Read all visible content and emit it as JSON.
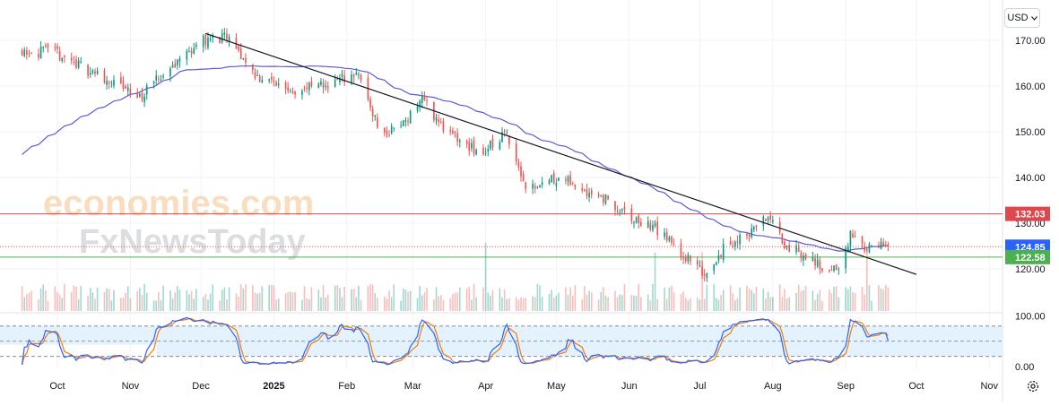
{
  "toolbar": {
    "currency": "USD"
  },
  "watermark": {
    "line1": "economies.com",
    "line2": "FxNewsToday"
  },
  "icons": {
    "currency_dropdown": "chevron-down-icon",
    "settings": "gear-icon"
  },
  "colors": {
    "bull": "#089981",
    "bear": "#ef5350",
    "ma_line": "#5b5bd6",
    "trend_line": "#131722",
    "resistance": "#e0474c",
    "support": "#4caf50",
    "current": "#2962ff",
    "stoch_k": "#2962ff",
    "stoch_d": "#f57c00",
    "stoch_band": "#e3f2fd"
  },
  "chart_data": [
    {
      "type": "candlestick",
      "title": "",
      "y_axis_ticks": [
        "170.00",
        "160.00",
        "150.00",
        "140.00",
        "130.00",
        "120.00"
      ],
      "ylim": [
        116,
        175
      ],
      "x_axis_ticks": [
        "Oct",
        "Nov",
        "Dec",
        "2025",
        "Feb",
        "Mar",
        "Apr",
        "May",
        "Jun",
        "Jul",
        "Aug",
        "Sep",
        "Oct",
        "Nov"
      ],
      "x_range": [
        "2024-09-15",
        "2025-11-15"
      ],
      "price_levels": [
        {
          "label": "132.03",
          "value": 132.03,
          "role": "resistance"
        },
        {
          "label": "124.85",
          "value": 124.85,
          "role": "current price"
        },
        {
          "label": "122.58",
          "value": 122.58,
          "role": "support"
        }
      ],
      "trendline": {
        "from": {
          "date": "2024-12-03",
          "value": 171.5
        },
        "to": {
          "date": "2025-10-01",
          "value": 118.8
        }
      },
      "moving_average_shown": true,
      "volume_shown": true,
      "ohlc_path": {
        "start": "2024-09-15",
        "end": "2025-09-19",
        "trading_days": 265,
        "anchor_closes": [
          [
            "2024-09-15",
            168.0
          ],
          [
            "2024-10-01",
            167.0
          ],
          [
            "2024-10-20",
            162.0
          ],
          [
            "2024-11-05",
            157.5
          ],
          [
            "2024-11-20",
            165.0
          ],
          [
            "2024-12-01",
            170.0
          ],
          [
            "2024-12-12",
            170.5
          ],
          [
            "2024-12-25",
            162.0
          ],
          [
            "2025-01-10",
            159.0
          ],
          [
            "2025-01-25",
            160.5
          ],
          [
            "2025-02-05",
            163.0
          ],
          [
            "2025-02-10",
            157.0
          ],
          [
            "2025-02-16",
            149.0
          ],
          [
            "2025-02-25",
            152.0
          ],
          [
            "2025-03-05",
            157.5
          ],
          [
            "2025-03-15",
            150.0
          ],
          [
            "2025-03-30",
            145.0
          ],
          [
            "2025-04-10",
            150.0
          ],
          [
            "2025-04-18",
            138.0
          ],
          [
            "2025-05-01",
            140.0
          ],
          [
            "2025-05-10",
            138.0
          ],
          [
            "2025-05-20",
            136.0
          ],
          [
            "2025-06-01",
            131.0
          ],
          [
            "2025-06-12",
            129.0
          ],
          [
            "2025-06-25",
            122.5
          ],
          [
            "2025-07-03",
            119.0
          ],
          [
            "2025-07-12",
            125.0
          ],
          [
            "2025-07-22",
            128.0
          ],
          [
            "2025-07-30",
            131.5
          ],
          [
            "2025-08-05",
            126.0
          ],
          [
            "2025-08-15",
            122.5
          ],
          [
            "2025-08-22",
            120.5
          ],
          [
            "2025-08-28",
            119.5
          ],
          [
            "2025-09-03",
            127.0
          ],
          [
            "2025-09-10",
            124.5
          ],
          [
            "2025-09-19",
            124.85
          ]
        ]
      }
    },
    {
      "type": "line",
      "title": "",
      "series_label": "stochastic oscillator, two lines",
      "y_axis_ticks": [
        "100.00",
        "0.00"
      ],
      "ylim": [
        0,
        100
      ],
      "bands": [
        80,
        50,
        20
      ]
    }
  ]
}
